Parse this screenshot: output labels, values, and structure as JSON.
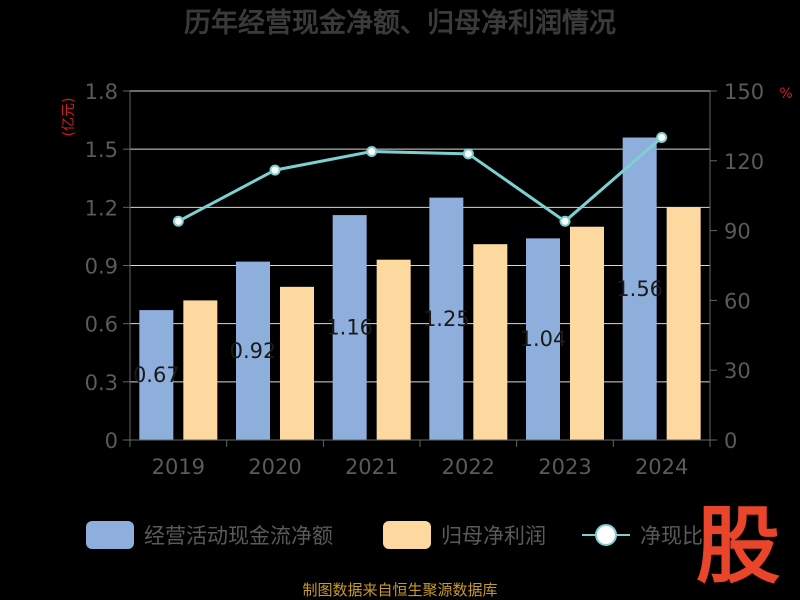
{
  "chart_data": {
    "type": "bar",
    "title": "历年经营现金净额、归母净利润情况",
    "categories": [
      "2019",
      "2020",
      "2021",
      "2022",
      "2023",
      "2024"
    ],
    "series": [
      {
        "name": "经营活动现金流净额",
        "type": "bar",
        "axis": "left",
        "color": "#8eaedc",
        "values": [
          0.67,
          0.92,
          1.16,
          1.25,
          1.04,
          1.56
        ],
        "data_labels": [
          "0.67",
          "0.92",
          "1.16",
          "1.25",
          "1.04",
          "1.56"
        ]
      },
      {
        "name": "归母净利润",
        "type": "bar",
        "axis": "left",
        "color": "#fdd9a0",
        "values": [
          0.72,
          0.79,
          0.93,
          1.01,
          1.1,
          1.2
        ]
      },
      {
        "name": "净现比",
        "type": "line",
        "axis": "right",
        "color": "#7ecfd0",
        "values": [
          94,
          116,
          124,
          123,
          94,
          130
        ]
      }
    ],
    "y_left": {
      "unit_label": "(亿元)",
      "ylim": [
        0,
        1.8
      ],
      "ticks": [
        "0",
        "0.3",
        "0.6",
        "0.9",
        "1.2",
        "1.5",
        "1.8"
      ]
    },
    "y_right": {
      "unit_label": "%",
      "ylim": [
        0,
        150
      ],
      "ticks": [
        "0",
        "30",
        "60",
        "90",
        "120",
        "150"
      ]
    },
    "grid": true,
    "legend_position": "bottom"
  },
  "footer": {
    "source": "制图数据来自恒生聚源数据库"
  },
  "watermark": {
    "text": "股"
  }
}
